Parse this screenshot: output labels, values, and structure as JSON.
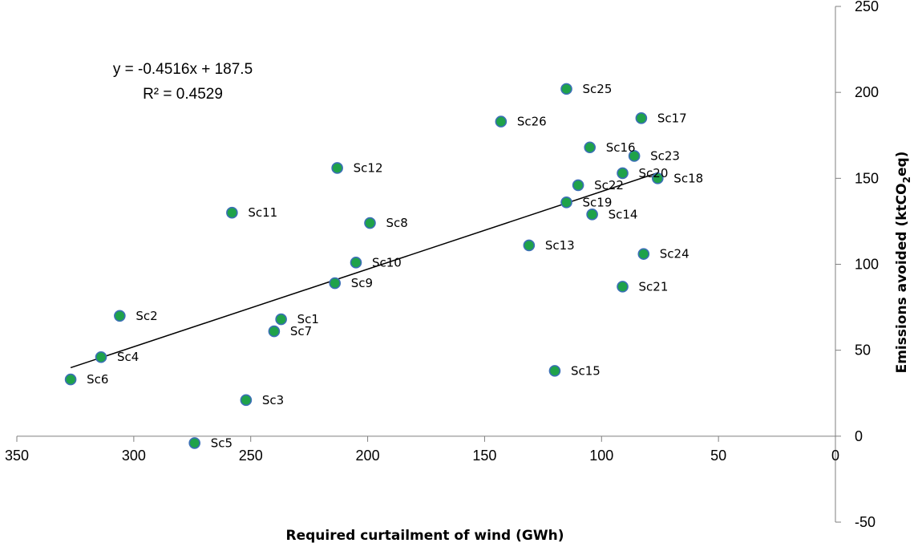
{
  "chart_data": {
    "type": "scatter",
    "title": "",
    "xlabel": "Required curtailment of wind (GWh)",
    "ylabel": {
      "prefix": "Emissions avoided (ktCO",
      "subscript": "2",
      "suffix": "eq)"
    },
    "x_reversed": true,
    "xlim": [
      350,
      0
    ],
    "ylim": [
      -50,
      250
    ],
    "x_ticks": [
      350,
      300,
      250,
      200,
      150,
      100,
      50,
      0
    ],
    "y_ticks": [
      -50,
      0,
      50,
      100,
      150,
      200,
      250
    ],
    "grid": false,
    "legend": "none",
    "marker_fill": "#1fa24a",
    "marker_edge": "#3b6fb6",
    "trendline": {
      "slope": -0.4516,
      "intercept": 187.5,
      "x_range": [
        327,
        76
      ],
      "equation_text": "y = -0.4516x + 187.5",
      "r2_text": "R² = 0.4529",
      "color": "#000000"
    },
    "points": [
      {
        "label": "Sc1",
        "x": 237,
        "y": 68
      },
      {
        "label": "Sc2",
        "x": 306,
        "y": 70
      },
      {
        "label": "Sc3",
        "x": 252,
        "y": 21
      },
      {
        "label": "Sc4",
        "x": 314,
        "y": 46
      },
      {
        "label": "Sc5",
        "x": 274,
        "y": -4
      },
      {
        "label": "Sc6",
        "x": 327,
        "y": 33
      },
      {
        "label": "Sc7",
        "x": 240,
        "y": 61
      },
      {
        "label": "Sc8",
        "x": 199,
        "y": 124
      },
      {
        "label": "Sc9",
        "x": 214,
        "y": 89
      },
      {
        "label": "Sc10",
        "x": 205,
        "y": 101
      },
      {
        "label": "Sc11",
        "x": 258,
        "y": 130
      },
      {
        "label": "Sc12",
        "x": 213,
        "y": 156
      },
      {
        "label": "Sc13",
        "x": 131,
        "y": 111
      },
      {
        "label": "Sc14",
        "x": 104,
        "y": 129
      },
      {
        "label": "Sc15",
        "x": 120,
        "y": 38
      },
      {
        "label": "Sc16",
        "x": 105,
        "y": 168
      },
      {
        "label": "Sc17",
        "x": 83,
        "y": 185
      },
      {
        "label": "Sc18",
        "x": 76,
        "y": 150
      },
      {
        "label": "Sc19",
        "x": 115,
        "y": 136
      },
      {
        "label": "Sc20",
        "x": 91,
        "y": 153
      },
      {
        "label": "Sc21",
        "x": 91,
        "y": 87
      },
      {
        "label": "Sc22",
        "x": 110,
        "y": 146
      },
      {
        "label": "Sc23",
        "x": 86,
        "y": 163
      },
      {
        "label": "Sc24",
        "x": 82,
        "y": 106
      },
      {
        "label": "Sc25",
        "x": 115,
        "y": 202
      },
      {
        "label": "Sc26",
        "x": 143,
        "y": 183
      }
    ]
  }
}
